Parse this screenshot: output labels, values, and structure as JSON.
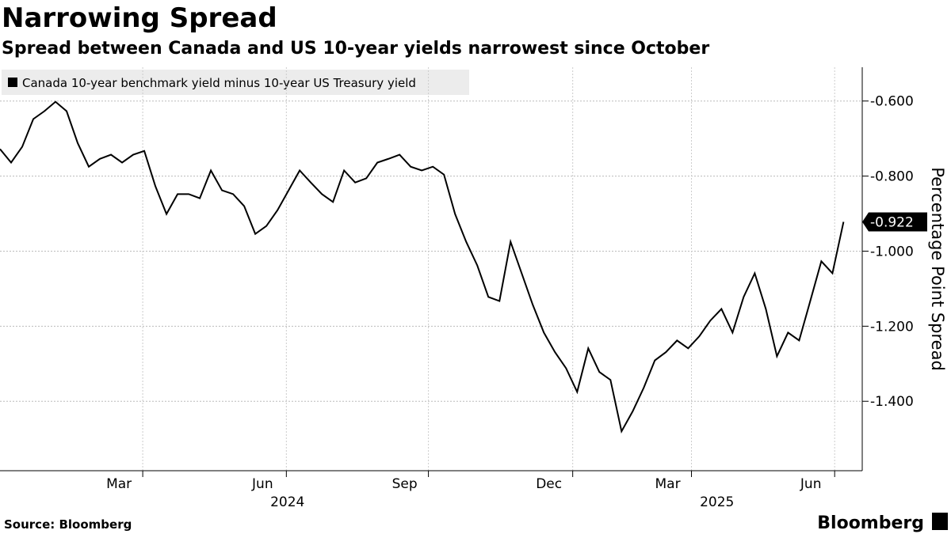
{
  "chart_data": {
    "type": "line",
    "title": "Narrowing Spread",
    "subtitle": "Spread between Canada and US 10-year yields narrowest since October",
    "y_axis_label": "Percentage Point Spread",
    "source": "Source: Bloomberg",
    "brand": "Bloomberg",
    "series": [
      {
        "name": "Canada 10-year benchmark yield minus 10-year US Treasury yield",
        "color": "#000000",
        "values": [
          -0.728,
          -0.764,
          -0.722,
          -0.648,
          -0.627,
          -0.602,
          -0.627,
          -0.712,
          -0.775,
          -0.754,
          -0.743,
          -0.764,
          -0.743,
          -0.733,
          -0.827,
          -0.901,
          -0.848,
          -0.848,
          -0.859,
          -0.785,
          -0.838,
          -0.848,
          -0.88,
          -0.954,
          -0.933,
          -0.891,
          -0.838,
          -0.785,
          -0.817,
          -0.848,
          -0.869,
          -0.785,
          -0.817,
          -0.806,
          -0.764,
          -0.754,
          -0.743,
          -0.775,
          -0.785,
          -0.775,
          -0.796,
          -0.901,
          -0.975,
          -1.038,
          -1.122,
          -1.133,
          -0.975,
          -1.059,
          -1.143,
          -1.217,
          -1.269,
          -1.312,
          -1.375,
          -1.259,
          -1.322,
          -1.343,
          -1.48,
          -1.427,
          -1.364,
          -1.291,
          -1.269,
          -1.238,
          -1.259,
          -1.227,
          -1.185,
          -1.154,
          -1.217,
          -1.122,
          -1.059,
          -1.154,
          -1.28,
          -1.217,
          -1.238,
          -1.133,
          -1.027,
          -1.059,
          -0.922
        ]
      }
    ],
    "xlim": [
      0,
      76.4
    ],
    "xticks": [
      {
        "value": 12.86,
        "label": "Mar"
      },
      {
        "value": 25.8,
        "label": "Jun"
      },
      {
        "value": 38.6,
        "label": "Sep"
      },
      {
        "value": 51.6,
        "label": "Dec"
      },
      {
        "value": 62.3,
        "label": "Mar"
      },
      {
        "value": 75.2,
        "label": "Jun"
      }
    ],
    "year_ticks": [
      {
        "value": 25.9,
        "label": "2024"
      },
      {
        "value": 64.6,
        "label": "2025"
      }
    ],
    "ylim": [
      -1.585,
      -0.51
    ],
    "yticks": [
      {
        "value": -0.6,
        "label": "-0.600"
      },
      {
        "value": -0.8,
        "label": "-0.800"
      },
      {
        "value": -1.0,
        "label": "-1.000"
      },
      {
        "value": -1.2,
        "label": "-1.200"
      },
      {
        "value": -1.4,
        "label": "-1.400"
      }
    ],
    "grid": true
  }
}
